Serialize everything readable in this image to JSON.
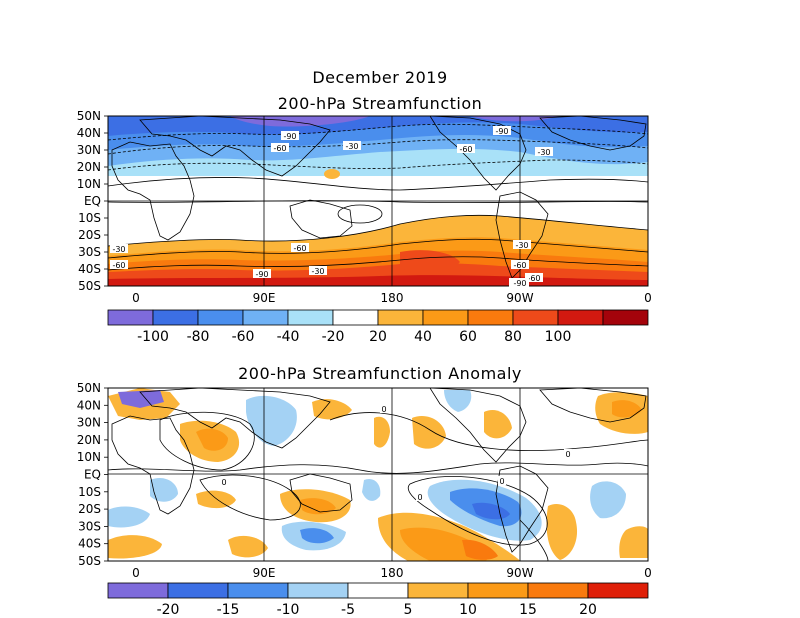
{
  "titles": {
    "main": "December 2019",
    "top": "200-hPa Streamfunction",
    "bottom": "200-hPa Streamfunction Anomaly"
  },
  "axes": {
    "lat_labels": [
      "50N",
      "40N",
      "30N",
      "20N",
      "10N",
      "EQ",
      "10S",
      "20S",
      "30S",
      "40S",
      "50S"
    ],
    "lon_labels": [
      "0",
      "90E",
      "180",
      "90W",
      "0"
    ]
  },
  "top_map": {
    "contour_labels": [
      "-90",
      "-60",
      "-30",
      "-90",
      "-60",
      "-30",
      "-30",
      "-60",
      "-30",
      "-60",
      "-30",
      "-60",
      "-90",
      "-30",
      "-60",
      "-90"
    ],
    "colorbar": {
      "ticks": [
        "-100",
        "-80",
        "-60",
        "-40",
        "-20",
        "20",
        "40",
        "60",
        "80",
        "100"
      ],
      "colors": [
        "#7e6bdb",
        "#3c6fe4",
        "#4a8eed",
        "#6fb1f5",
        "#a9e1f8",
        "#ffffff",
        "#fbb53a",
        "#fb9a17",
        "#f97a0e",
        "#ee4a1a",
        "#d21910",
        "#a4030b"
      ]
    }
  },
  "bottom_map": {
    "contour_labels": [
      "0",
      "0",
      "0",
      "0",
      "0"
    ],
    "colorbar": {
      "ticks": [
        "-20",
        "-15",
        "-10",
        "-5",
        "5",
        "10",
        "15",
        "20"
      ],
      "colors": [
        "#7e6bdb",
        "#3c6fe4",
        "#4a8eed",
        "#a4d2f4",
        "#ffffff",
        "#fbb53a",
        "#fb9a17",
        "#f97a0e",
        "#df1f08"
      ]
    }
  }
}
